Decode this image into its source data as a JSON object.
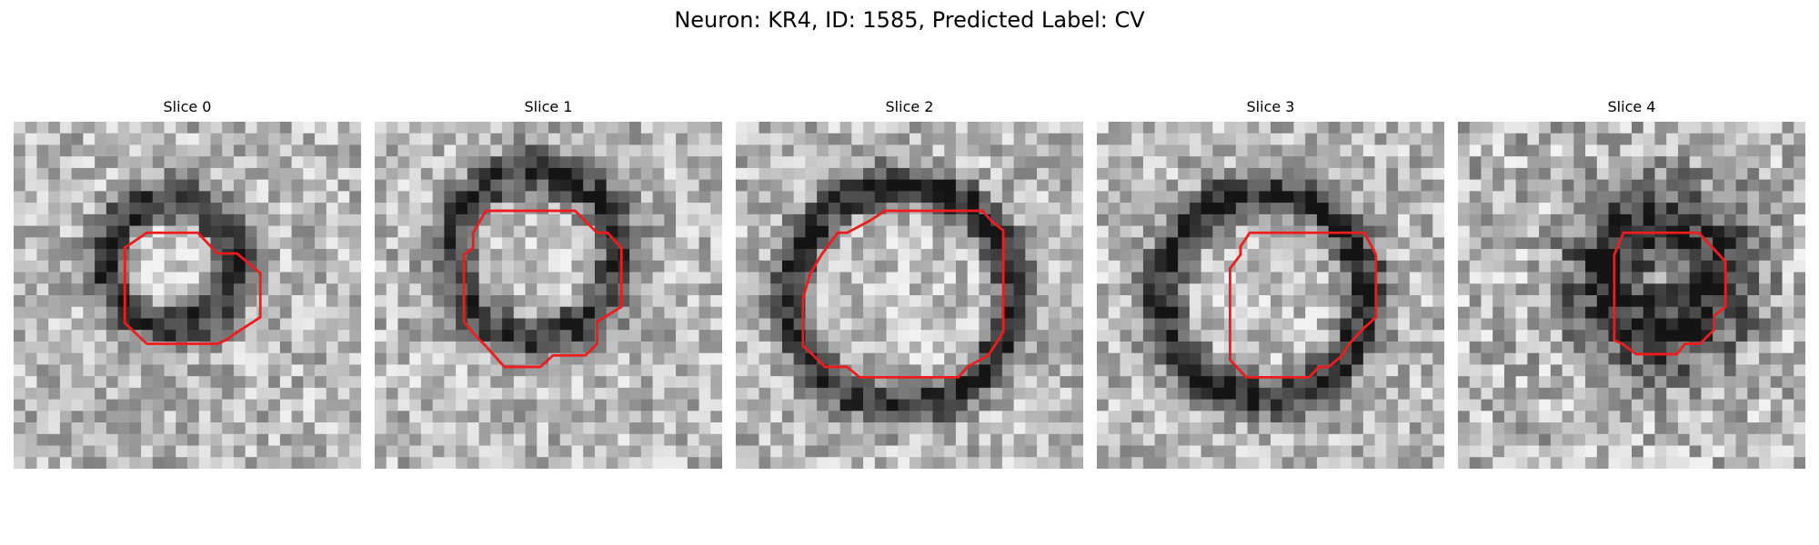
{
  "figure": {
    "title": "Neuron: KR4, ID: 1585, Predicted Label: CV",
    "overlay_color": "#ee1c1c",
    "colormap": "grayscale",
    "panels": [
      {
        "title": "Slice 0"
      },
      {
        "title": "Slice 1"
      },
      {
        "title": "Slice 2"
      },
      {
        "title": "Slice 3"
      },
      {
        "title": "Slice 4"
      }
    ]
  }
}
